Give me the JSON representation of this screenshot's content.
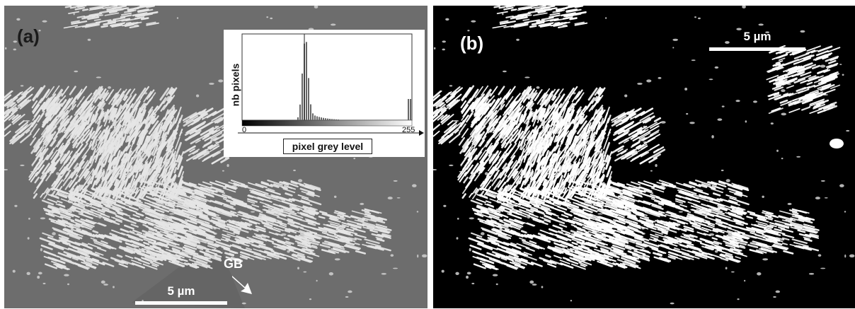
{
  "panel_a": {
    "label": "(a)",
    "scale_bar": "5 µm",
    "annotation": "GB",
    "histogram": {
      "ylabel": "nb pixels",
      "xlabel": "pixel grey level",
      "tick_min": "0",
      "tick_max": "255"
    }
  },
  "panel_b": {
    "label": "(b)",
    "scale_bar": "5 µm"
  },
  "colors": {
    "matrix_grey": "#6d6d6d",
    "lamella_light": "#e6e6e6",
    "binary_background": "#000000",
    "binary_foreground": "#ffffff"
  }
}
